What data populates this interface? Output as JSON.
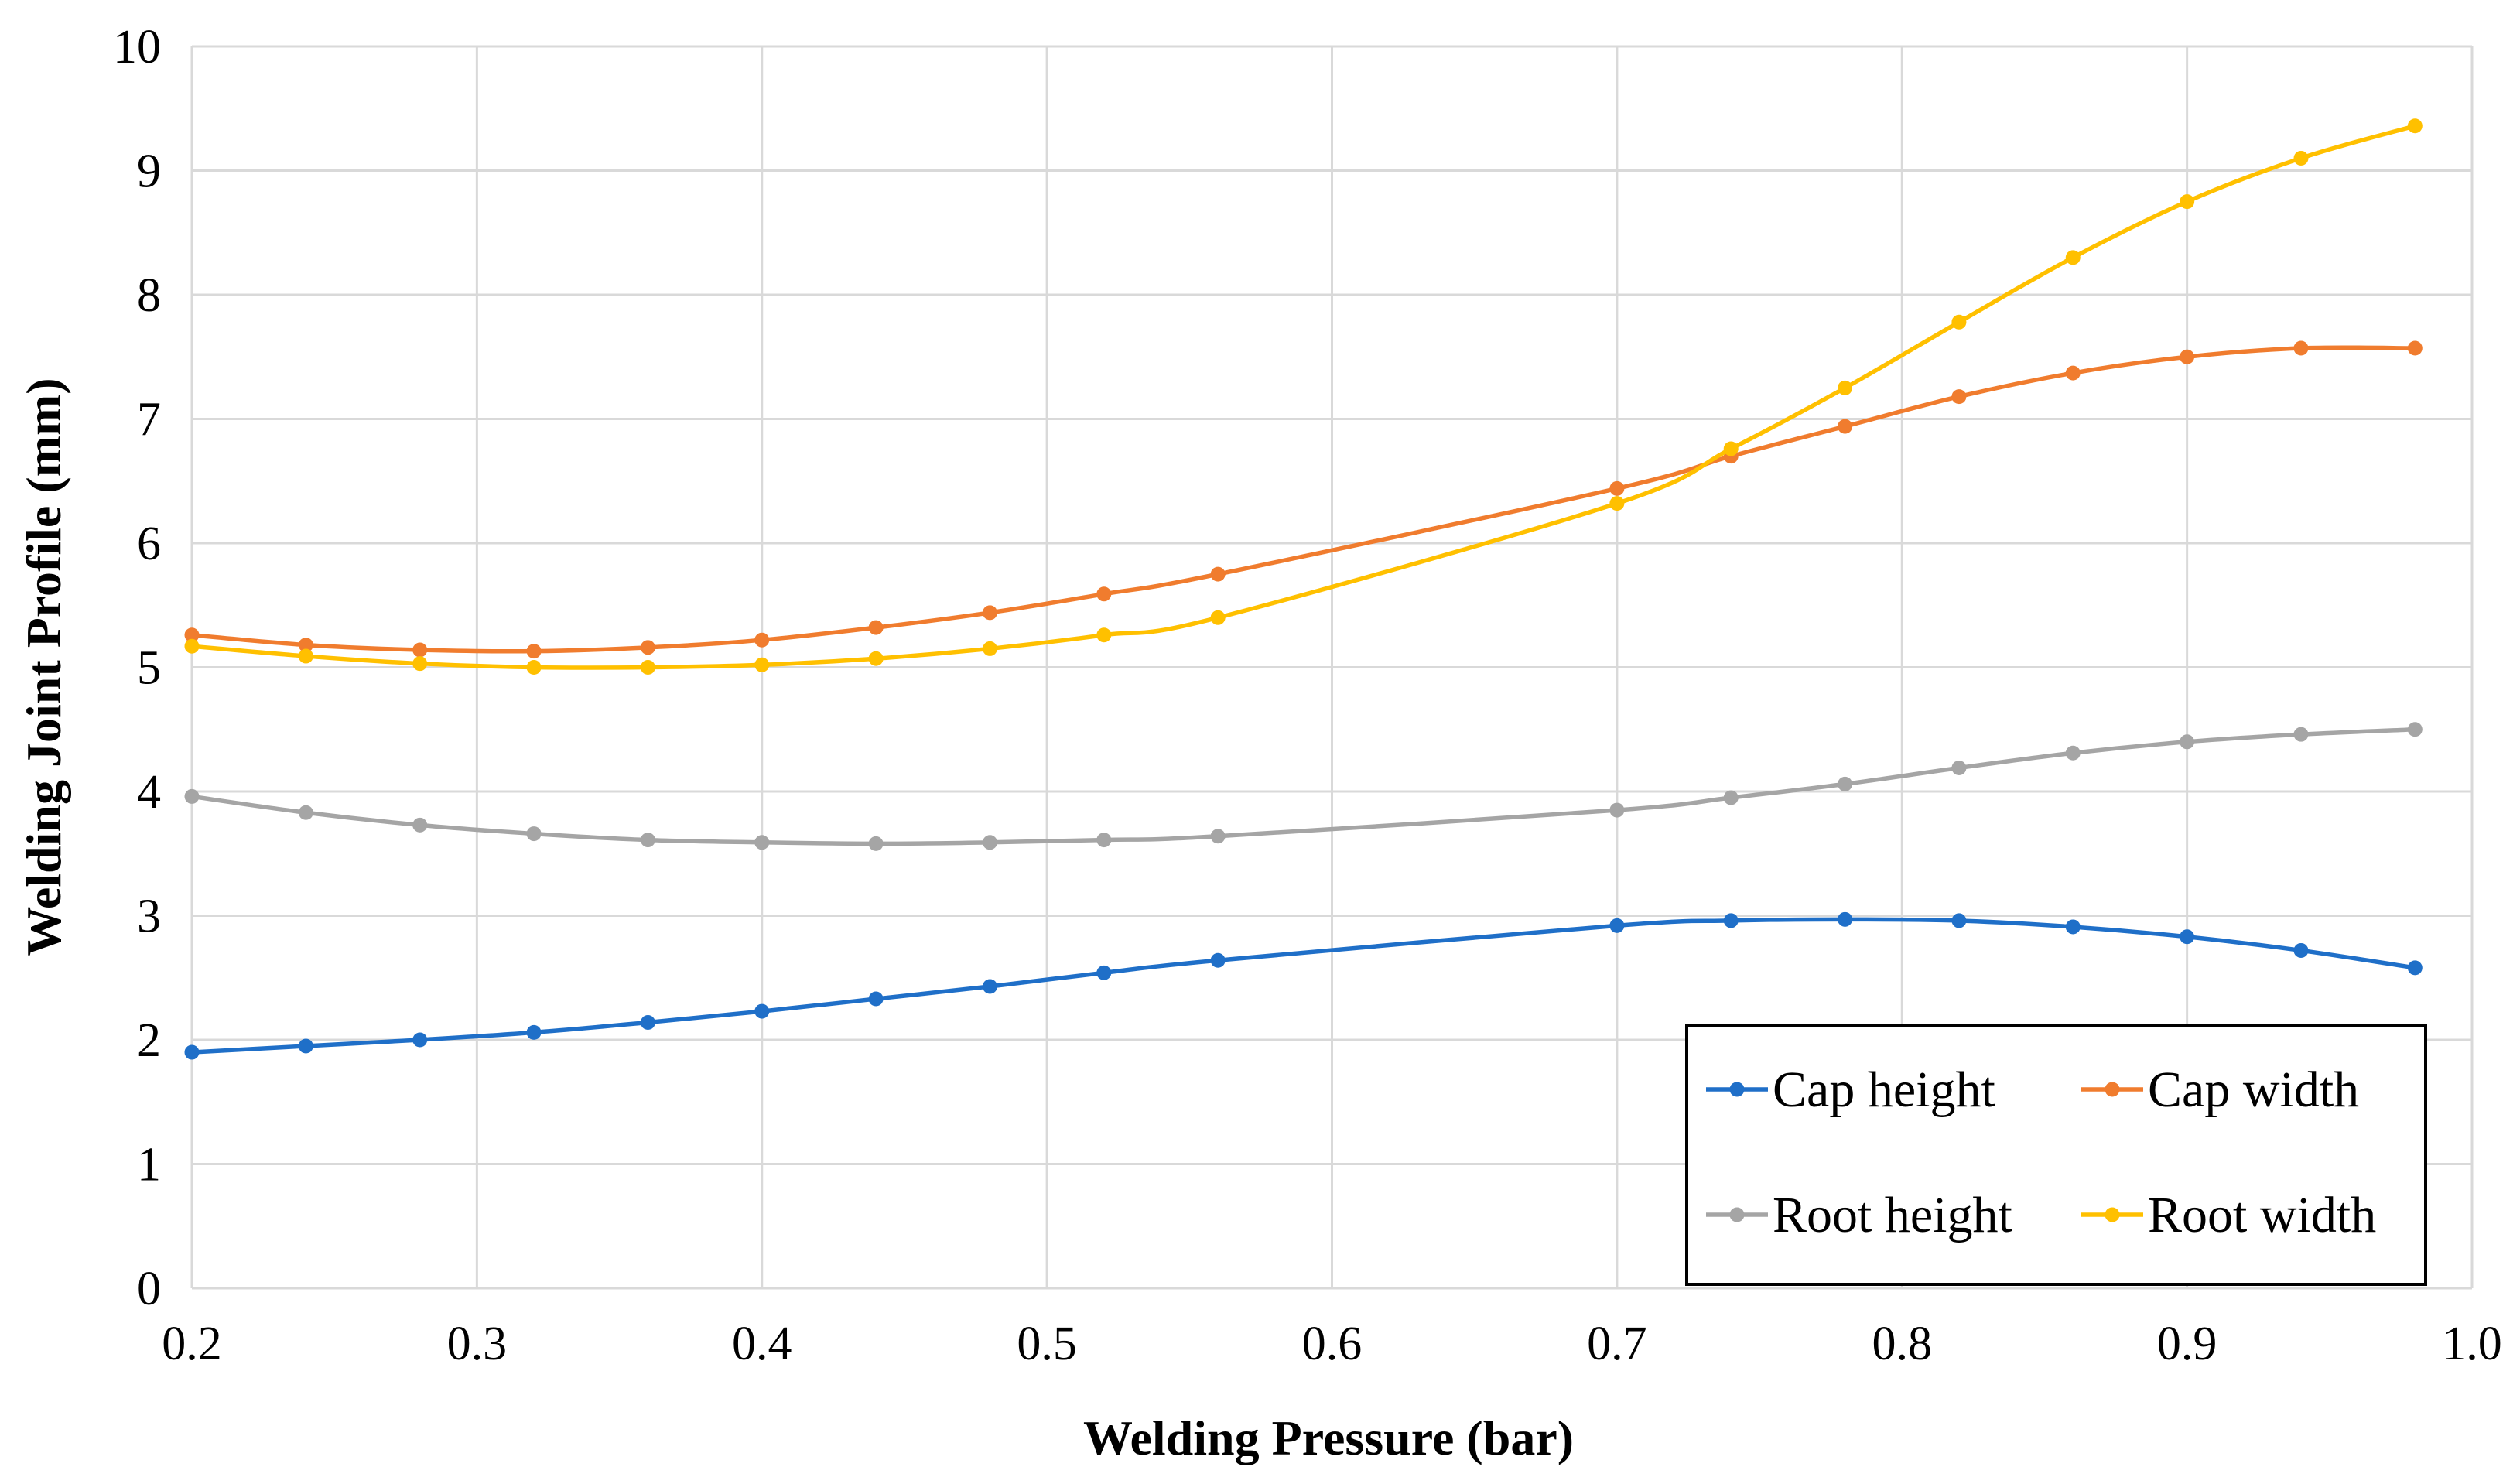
{
  "chart_data": {
    "type": "line",
    "title": "",
    "xlabel": "Welding Pressure (bar)",
    "ylabel": "Welding Joint Profile (mm)",
    "xlim": [
      0.2,
      1.0
    ],
    "ylim": [
      0,
      10
    ],
    "xticks": [
      "0.2",
      "0.3",
      "0.4",
      "0.5",
      "0.6",
      "0.7",
      "0.8",
      "0.9",
      "1.0"
    ],
    "yticks": [
      "0",
      "1",
      "2",
      "3",
      "4",
      "5",
      "6",
      "7",
      "8",
      "9",
      "10"
    ],
    "grid": true,
    "legend_position": "bottom-right",
    "x": [
      0.2,
      0.24,
      0.28,
      0.32,
      0.36,
      0.4,
      0.44,
      0.48,
      0.52,
      0.56,
      0.7,
      0.74,
      0.78,
      0.82,
      0.86,
      0.9,
      0.94,
      0.98
    ],
    "series": [
      {
        "name": "Cap height",
        "color": "#1f6fc8",
        "values": [
          1.9,
          1.95,
          2.0,
          2.06,
          2.14,
          2.23,
          2.33,
          2.43,
          2.54,
          2.64,
          2.92,
          2.96,
          2.97,
          2.96,
          2.91,
          2.83,
          2.72,
          2.58
        ]
      },
      {
        "name": "Cap width",
        "color": "#f07c2e",
        "values": [
          5.26,
          5.18,
          5.14,
          5.13,
          5.16,
          5.22,
          5.32,
          5.44,
          5.59,
          5.75,
          6.44,
          6.7,
          6.94,
          7.18,
          7.37,
          7.5,
          7.57,
          7.57
        ]
      },
      {
        "name": "Root height",
        "color": "#a5a5a5",
        "values": [
          3.96,
          3.83,
          3.73,
          3.66,
          3.61,
          3.59,
          3.58,
          3.59,
          3.61,
          3.64,
          3.85,
          3.95,
          4.06,
          4.19,
          4.31,
          4.4,
          4.46,
          4.5
        ]
      },
      {
        "name": "Root width",
        "color": "#ffc000",
        "values": [
          5.17,
          5.09,
          5.03,
          5.0,
          5.0,
          5.02,
          5.07,
          5.15,
          5.26,
          5.4,
          6.32,
          6.76,
          7.25,
          7.78,
          8.3,
          8.75,
          9.1,
          9.36
        ]
      }
    ]
  }
}
